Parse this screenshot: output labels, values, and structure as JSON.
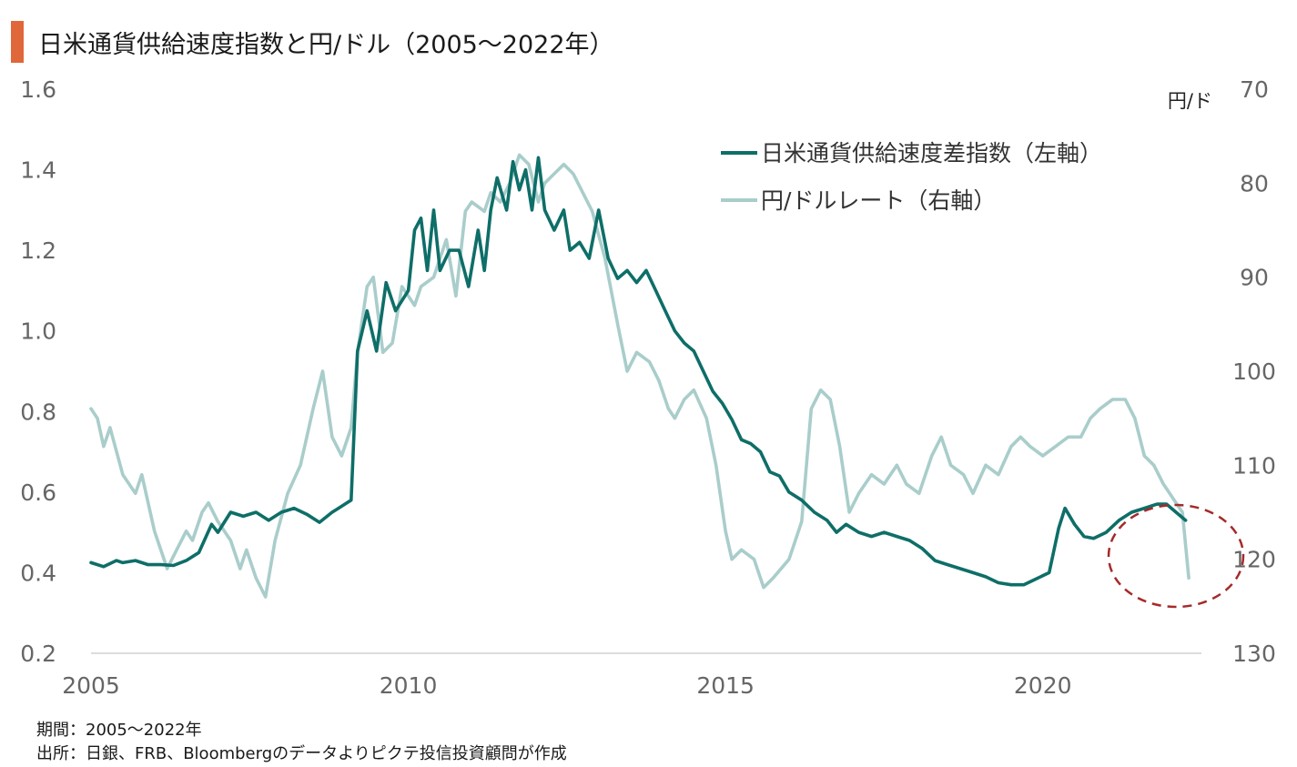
{
  "header": {
    "title": "日米通貨供給速度指数と円/ドル（2005～2022年）"
  },
  "notes": {
    "period": "期間：2005～2022年",
    "source": "出所：日銀、FRB、Bloombergのデータよりピクテ投信投資顧問が作成"
  },
  "colors": {
    "accent": "#E0673A",
    "index_line": "#0E6E68",
    "fx_line": "#A9CDCB",
    "circle": "#A52A2A"
  },
  "chart_data": {
    "type": "line",
    "title": "日米通貨供給速度指数と円/ドル（2005～2022年）",
    "x_ticks": [
      "2005",
      "2010",
      "2015",
      "2020"
    ],
    "xlim": [
      2005,
      2022.5
    ],
    "y_left": {
      "lim": [
        0.2,
        1.6
      ],
      "ticks": [
        "0.2",
        "0.4",
        "0.6",
        "0.8",
        "1.0",
        "1.2",
        "1.4",
        "1.6"
      ]
    },
    "y_right": {
      "label": "円/ド",
      "lim": [
        70,
        130
      ],
      "inverted": true,
      "ticks": [
        "70",
        "80",
        "90",
        "100",
        "110",
        "120",
        "130"
      ]
    },
    "legend_position": "top-right",
    "annotation": "dashed circle around latest data (2022)",
    "series": [
      {
        "name": "日米通貨供給速度差指数（左軸）",
        "axis": "left",
        "points": [
          [
            2005.0,
            0.425
          ],
          [
            2005.2,
            0.415
          ],
          [
            2005.4,
            0.43
          ],
          [
            2005.5,
            0.425
          ],
          [
            2005.7,
            0.43
          ],
          [
            2005.9,
            0.42
          ],
          [
            2006.1,
            0.42
          ],
          [
            2006.3,
            0.418
          ],
          [
            2006.5,
            0.43
          ],
          [
            2006.7,
            0.45
          ],
          [
            2006.9,
            0.52
          ],
          [
            2007.0,
            0.5
          ],
          [
            2007.2,
            0.55
          ],
          [
            2007.4,
            0.54
          ],
          [
            2007.6,
            0.55
          ],
          [
            2007.8,
            0.53
          ],
          [
            2008.0,
            0.55
          ],
          [
            2008.2,
            0.56
          ],
          [
            2008.4,
            0.545
          ],
          [
            2008.6,
            0.525
          ],
          [
            2008.8,
            0.55
          ],
          [
            2008.9,
            0.56
          ],
          [
            2009.1,
            0.58
          ],
          [
            2009.2,
            0.95
          ],
          [
            2009.35,
            1.05
          ],
          [
            2009.5,
            0.95
          ],
          [
            2009.65,
            1.12
          ],
          [
            2009.8,
            1.05
          ],
          [
            2010.0,
            1.1
          ],
          [
            2010.1,
            1.25
          ],
          [
            2010.2,
            1.28
          ],
          [
            2010.3,
            1.15
          ],
          [
            2010.4,
            1.3
          ],
          [
            2010.5,
            1.15
          ],
          [
            2010.65,
            1.2
          ],
          [
            2010.8,
            1.2
          ],
          [
            2010.95,
            1.11
          ],
          [
            2011.1,
            1.25
          ],
          [
            2011.2,
            1.15
          ],
          [
            2011.3,
            1.3
          ],
          [
            2011.4,
            1.38
          ],
          [
            2011.55,
            1.3
          ],
          [
            2011.65,
            1.42
          ],
          [
            2011.75,
            1.35
          ],
          [
            2011.85,
            1.4
          ],
          [
            2011.95,
            1.3
          ],
          [
            2012.05,
            1.43
          ],
          [
            2012.15,
            1.3
          ],
          [
            2012.3,
            1.25
          ],
          [
            2012.45,
            1.3
          ],
          [
            2012.55,
            1.2
          ],
          [
            2012.7,
            1.22
          ],
          [
            2012.85,
            1.18
          ],
          [
            2013.0,
            1.3
          ],
          [
            2013.15,
            1.18
          ],
          [
            2013.3,
            1.13
          ],
          [
            2013.45,
            1.15
          ],
          [
            2013.6,
            1.12
          ],
          [
            2013.75,
            1.15
          ],
          [
            2013.9,
            1.1
          ],
          [
            2014.05,
            1.05
          ],
          [
            2014.2,
            1.0
          ],
          [
            2014.35,
            0.97
          ],
          [
            2014.5,
            0.95
          ],
          [
            2014.65,
            0.9
          ],
          [
            2014.8,
            0.85
          ],
          [
            2014.95,
            0.82
          ],
          [
            2015.1,
            0.78
          ],
          [
            2015.25,
            0.73
          ],
          [
            2015.4,
            0.72
          ],
          [
            2015.55,
            0.7
          ],
          [
            2015.7,
            0.65
          ],
          [
            2015.85,
            0.64
          ],
          [
            2016.0,
            0.6
          ],
          [
            2016.2,
            0.58
          ],
          [
            2016.4,
            0.55
          ],
          [
            2016.6,
            0.53
          ],
          [
            2016.75,
            0.5
          ],
          [
            2016.9,
            0.52
          ],
          [
            2017.1,
            0.5
          ],
          [
            2017.3,
            0.49
          ],
          [
            2017.5,
            0.5
          ],
          [
            2017.7,
            0.49
          ],
          [
            2017.9,
            0.48
          ],
          [
            2018.1,
            0.46
          ],
          [
            2018.3,
            0.43
          ],
          [
            2018.5,
            0.42
          ],
          [
            2018.7,
            0.41
          ],
          [
            2018.9,
            0.4
          ],
          [
            2019.1,
            0.39
          ],
          [
            2019.3,
            0.375
          ],
          [
            2019.5,
            0.37
          ],
          [
            2019.7,
            0.37
          ],
          [
            2019.9,
            0.385
          ],
          [
            2020.1,
            0.4
          ],
          [
            2020.25,
            0.51
          ],
          [
            2020.35,
            0.56
          ],
          [
            2020.5,
            0.52
          ],
          [
            2020.65,
            0.49
          ],
          [
            2020.8,
            0.485
          ],
          [
            2021.0,
            0.5
          ],
          [
            2021.2,
            0.53
          ],
          [
            2021.4,
            0.55
          ],
          [
            2021.6,
            0.56
          ],
          [
            2021.8,
            0.57
          ],
          [
            2021.95,
            0.57
          ],
          [
            2022.1,
            0.55
          ],
          [
            2022.25,
            0.53
          ]
        ]
      },
      {
        "name": "円/ドルレート（右軸）",
        "axis": "right",
        "points": [
          [
            2005.0,
            104
          ],
          [
            2005.1,
            105
          ],
          [
            2005.2,
            108
          ],
          [
            2005.3,
            106
          ],
          [
            2005.5,
            111
          ],
          [
            2005.7,
            113
          ],
          [
            2005.8,
            111
          ],
          [
            2006.0,
            117
          ],
          [
            2006.2,
            121
          ],
          [
            2006.35,
            119
          ],
          [
            2006.5,
            117
          ],
          [
            2006.6,
            118
          ],
          [
            2006.75,
            115
          ],
          [
            2006.85,
            114
          ],
          [
            2007.0,
            116
          ],
          [
            2007.2,
            118
          ],
          [
            2007.35,
            121
          ],
          [
            2007.45,
            119
          ],
          [
            2007.6,
            122
          ],
          [
            2007.75,
            124
          ],
          [
            2007.9,
            118
          ],
          [
            2008.1,
            113
          ],
          [
            2008.3,
            110
          ],
          [
            2008.5,
            104
          ],
          [
            2008.65,
            100
          ],
          [
            2008.8,
            107
          ],
          [
            2008.95,
            109
          ],
          [
            2009.1,
            106
          ],
          [
            2009.2,
            98
          ],
          [
            2009.35,
            91
          ],
          [
            2009.45,
            90
          ],
          [
            2009.6,
            98
          ],
          [
            2009.75,
            97
          ],
          [
            2009.9,
            91
          ],
          [
            2010.0,
            92
          ],
          [
            2010.1,
            93
          ],
          [
            2010.2,
            91
          ],
          [
            2010.4,
            90
          ],
          [
            2010.5,
            88
          ],
          [
            2010.6,
            86
          ],
          [
            2010.75,
            92
          ],
          [
            2010.9,
            83
          ],
          [
            2011.0,
            82
          ],
          [
            2011.2,
            83
          ],
          [
            2011.3,
            81
          ],
          [
            2011.45,
            82
          ],
          [
            2011.6,
            80
          ],
          [
            2011.75,
            77
          ],
          [
            2011.9,
            78
          ],
          [
            2012.05,
            82
          ],
          [
            2012.15,
            80
          ],
          [
            2012.3,
            79
          ],
          [
            2012.45,
            78
          ],
          [
            2012.6,
            79
          ],
          [
            2012.75,
            81
          ],
          [
            2012.9,
            83
          ],
          [
            2013.1,
            88
          ],
          [
            2013.3,
            95
          ],
          [
            2013.45,
            100
          ],
          [
            2013.6,
            98
          ],
          [
            2013.8,
            99
          ],
          [
            2013.95,
            101
          ],
          [
            2014.1,
            104
          ],
          [
            2014.2,
            105
          ],
          [
            2014.35,
            103
          ],
          [
            2014.5,
            102
          ],
          [
            2014.7,
            105
          ],
          [
            2014.85,
            110
          ],
          [
            2015.0,
            117
          ],
          [
            2015.1,
            120
          ],
          [
            2015.25,
            119
          ],
          [
            2015.45,
            120
          ],
          [
            2015.6,
            123
          ],
          [
            2015.75,
            122
          ],
          [
            2016.0,
            120
          ],
          [
            2016.2,
            116
          ],
          [
            2016.35,
            104
          ],
          [
            2016.5,
            102
          ],
          [
            2016.65,
            103
          ],
          [
            2016.8,
            108
          ],
          [
            2016.95,
            115
          ],
          [
            2017.1,
            113
          ],
          [
            2017.3,
            111
          ],
          [
            2017.5,
            112
          ],
          [
            2017.7,
            110
          ],
          [
            2017.85,
            112
          ],
          [
            2018.05,
            113
          ],
          [
            2018.25,
            109
          ],
          [
            2018.4,
            107
          ],
          [
            2018.55,
            110
          ],
          [
            2018.75,
            111
          ],
          [
            2018.9,
            113
          ],
          [
            2019.1,
            110
          ],
          [
            2019.3,
            111
          ],
          [
            2019.5,
            108
          ],
          [
            2019.65,
            107
          ],
          [
            2019.8,
            108
          ],
          [
            2020.0,
            109
          ],
          [
            2020.2,
            108
          ],
          [
            2020.4,
            107
          ],
          [
            2020.6,
            107
          ],
          [
            2020.75,
            105
          ],
          [
            2020.9,
            104
          ],
          [
            2021.1,
            103
          ],
          [
            2021.3,
            103
          ],
          [
            2021.45,
            105
          ],
          [
            2021.6,
            109
          ],
          [
            2021.75,
            110
          ],
          [
            2021.9,
            112
          ],
          [
            2022.0,
            113
          ],
          [
            2022.1,
            114
          ],
          [
            2022.2,
            115
          ],
          [
            2022.3,
            122
          ]
        ]
      }
    ]
  }
}
